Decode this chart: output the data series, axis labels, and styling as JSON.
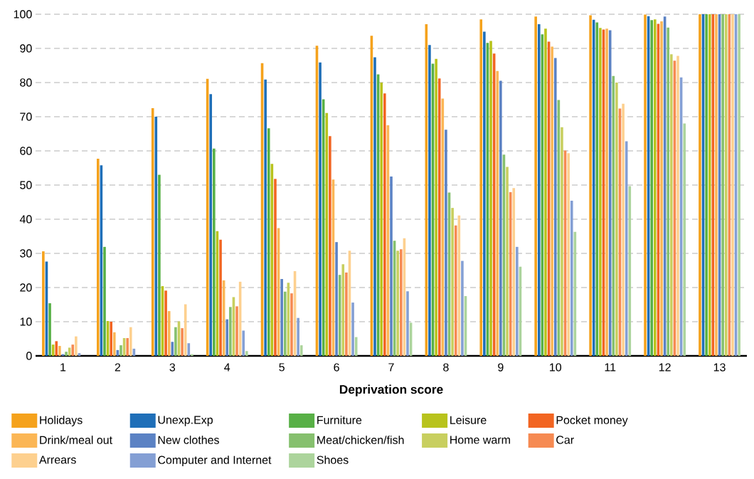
{
  "chart_data": {
    "type": "bar",
    "xlabel": "Deprivation score",
    "categories": [
      "1",
      "2",
      "3",
      "4",
      "5",
      "6",
      "7",
      "8",
      "9",
      "10",
      "11",
      "12",
      "13"
    ],
    "ylim": [
      0,
      100
    ],
    "yticks": [
      0,
      10,
      20,
      30,
      40,
      50,
      60,
      70,
      80,
      90,
      100
    ],
    "grid": "y",
    "legend": "bottom",
    "series": [
      {
        "name": "Holidays",
        "color": "#f5a21c",
        "values": [
          30.6,
          57.7,
          72.5,
          81.1,
          85.7,
          90.8,
          93.7,
          97.1,
          98.5,
          99.3,
          99.7,
          99.9,
          100
        ]
      },
      {
        "name": "Unexp.Exp",
        "color": "#1f6fb8",
        "values": [
          27.6,
          55.8,
          70.0,
          76.6,
          80.9,
          85.9,
          87.4,
          91.0,
          94.9,
          97.1,
          98.4,
          99.4,
          100
        ]
      },
      {
        "name": "Furniture",
        "color": "#58b046",
        "values": [
          15.4,
          31.9,
          53.0,
          60.7,
          66.6,
          75.1,
          82.4,
          85.5,
          91.6,
          94.1,
          97.6,
          98.3,
          100
        ]
      },
      {
        "name": "Leisure",
        "color": "#b8c31c",
        "values": [
          3.3,
          10.2,
          20.4,
          36.5,
          56.2,
          71.1,
          80.0,
          86.9,
          92.2,
          95.8,
          96.0,
          98.5,
          100
        ]
      },
      {
        "name": "Pocket money",
        "color": "#f26522",
        "values": [
          4.3,
          10.0,
          19.1,
          34.0,
          51.8,
          64.3,
          76.8,
          81.2,
          88.5,
          92.0,
          95.5,
          97.2,
          100
        ]
      },
      {
        "name": "Drink/meal out",
        "color": "#fbb655",
        "values": [
          2.9,
          6.9,
          13.1,
          22.1,
          37.4,
          51.6,
          67.5,
          75.3,
          83.4,
          90.5,
          95.8,
          97.9,
          100
        ]
      },
      {
        "name": "New clothes",
        "color": "#5b82c4",
        "values": [
          0.5,
          1.7,
          4.1,
          10.7,
          22.5,
          33.3,
          52.5,
          66.2,
          80.5,
          87.2,
          95.3,
          99.3,
          100
        ]
      },
      {
        "name": "Meat/chicken/fish",
        "color": "#86c06e",
        "values": [
          1.2,
          3.1,
          8.4,
          14.3,
          18.8,
          23.7,
          33.7,
          47.8,
          58.9,
          74.9,
          81.9,
          96.1,
          100
        ]
      },
      {
        "name": "Home warm",
        "color": "#c8cf5f",
        "values": [
          2.4,
          5.2,
          10.1,
          17.2,
          21.4,
          26.8,
          30.8,
          43.3,
          55.3,
          66.9,
          80.0,
          88.3,
          100
        ]
      },
      {
        "name": "Car",
        "color": "#f68a52",
        "values": [
          3.3,
          5.2,
          8.1,
          14.5,
          18.3,
          24.4,
          31.2,
          38.2,
          47.9,
          60.1,
          72.4,
          86.4,
          100
        ]
      },
      {
        "name": "Arrears",
        "color": "#fdd08f",
        "values": [
          5.7,
          8.4,
          15.1,
          21.7,
          24.8,
          30.8,
          34.4,
          41.1,
          49.1,
          59.3,
          73.8,
          87.8,
          100
        ]
      },
      {
        "name": "Computer and Internet",
        "color": "#849fd4",
        "values": [
          0.8,
          2.1,
          3.7,
          7.4,
          11.1,
          15.6,
          18.9,
          27.8,
          31.9,
          45.4,
          62.8,
          81.5,
          100
        ]
      },
      {
        "name": "Shoes",
        "color": "#acd49c",
        "values": [
          0,
          0,
          0.5,
          1.4,
          3.1,
          5.5,
          9.7,
          17.5,
          26.1,
          36.3,
          49.7,
          68.0,
          100
        ]
      }
    ]
  }
}
